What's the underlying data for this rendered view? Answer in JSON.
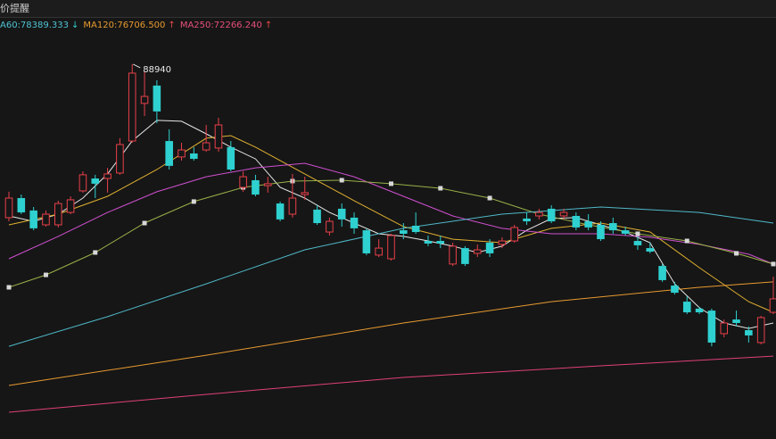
{
  "header": {
    "title": "价提醒"
  },
  "chart_data": {
    "type": "candlestick",
    "legend": [
      {
        "text": "A60:78389.333",
        "color": "#4fc3d4",
        "arrow": "↓",
        "arrow_color": "#2fd0c8"
      },
      {
        "text": "MA120:76706.500",
        "color": "#e89a30",
        "arrow": "↑",
        "arrow_color": "#e84848"
      },
      {
        "text": "MA250:72266.240",
        "color": "#e8507a",
        "arrow": "↑",
        "arrow_color": "#e84848"
      }
    ],
    "annotation": 88940,
    "ylim": [
      67520,
      90570
    ],
    "up_color": "#e8404a",
    "down_color": "#2fd0d0",
    "open": [
      80170,
      81290,
      80580,
      79760,
      79760,
      80470,
      81700,
      82410,
      82410,
      82720,
      84550,
      86700,
      87720,
      84550,
      83640,
      83840,
      84040,
      84150,
      84200,
      81900,
      82310,
      82000,
      80980,
      80370,
      81490,
      80630,
      79350,
      80680,
      80170,
      79450,
      78030,
      77820,
      79450,
      79710,
      78840,
      78840,
      77520,
      78430,
      78130,
      78740,
      78640,
      78840,
      80120,
      80270,
      80680,
      80270,
      80270,
      79960,
      79760,
      79860,
      79450,
      78840,
      78430,
      77410,
      76290,
      75370,
      74970,
      74860,
      73540,
      74350,
      73740,
      73030,
      74760
    ],
    "high": [
      81650,
      81490,
      80780,
      80580,
      81140,
      81390,
      82820,
      82620,
      83020,
      84710,
      88940,
      88530,
      88020,
      85220,
      84450,
      84200,
      85470,
      85880,
      84550,
      82820,
      82620,
      82510,
      81090,
      82670,
      82510,
      80880,
      80170,
      80980,
      80470,
      79560,
      78940,
      79250,
      79860,
      80470,
      79150,
      79150,
      78740,
      78540,
      78640,
      78940,
      79050,
      79760,
      80470,
      80680,
      80880,
      80680,
      80470,
      80370,
      79960,
      80170,
      79660,
      79100,
      78740,
      77520,
      76500,
      75680,
      75070,
      74970,
      74350,
      74860,
      73950,
      74560,
      76800
    ],
    "low": [
      79960,
      80370,
      79450,
      79660,
      79610,
      80370,
      81600,
      81290,
      81600,
      82620,
      84450,
      85980,
      85570,
      82920,
      83430,
      83430,
      83940,
      83940,
      82820,
      81650,
      81390,
      81600,
      79960,
      80170,
      81190,
      79760,
      79150,
      79660,
      79250,
      78030,
      77920,
      77720,
      78940,
      79250,
      78540,
      78430,
      77410,
      77410,
      77920,
      77920,
      78430,
      78740,
      79760,
      80070,
      79860,
      80070,
      79450,
      79450,
      78840,
      79250,
      79150,
      78330,
      78130,
      76500,
      75780,
      74660,
      74660,
      72820,
      73330,
      73950,
      73030,
      72930,
      74660
    ],
    "close": [
      81290,
      80470,
      79560,
      80370,
      80980,
      81190,
      82620,
      82110,
      82670,
      84350,
      88430,
      87100,
      86240,
      83130,
      84040,
      83530,
      84450,
      85470,
      82920,
      82510,
      81490,
      82110,
      80070,
      81290,
      81600,
      79860,
      79960,
      80070,
      79560,
      78130,
      78430,
      79150,
      79250,
      79350,
      78690,
      78690,
      78540,
      77520,
      78330,
      78130,
      78840,
      79610,
      79960,
      80470,
      79960,
      80470,
      79610,
      79610,
      78940,
      79450,
      79250,
      78590,
      78230,
      76600,
      75880,
      74760,
      74760,
      73030,
      74150,
      74150,
      73440,
      74460,
      75530
    ],
    "lines": [
      {
        "color": "#e6e6e6",
        "x": [
          0,
          2,
          4,
          6,
          8,
          10,
          12,
          14,
          16,
          18,
          20,
          22,
          24,
          26,
          28,
          30,
          32,
          34,
          36,
          38,
          40,
          42,
          44,
          46,
          48,
          50,
          52,
          54,
          56,
          58,
          60,
          62
        ],
        "values": [
          80270,
          79960,
          80370,
          81290,
          82670,
          84550,
          85730,
          85680,
          84960,
          84200,
          83530,
          81900,
          81290,
          80470,
          79860,
          79250,
          79100,
          78840,
          78540,
          78180,
          78540,
          79450,
          80120,
          80170,
          79760,
          79350,
          78740,
          76390,
          75020,
          74150,
          73840,
          74150
        ]
      },
      {
        "color": "#e0b030",
        "x": [
          0,
          4,
          8,
          12,
          16,
          18,
          20,
          24,
          28,
          32,
          36,
          40,
          44,
          48,
          52,
          56,
          60,
          62
        ],
        "values": [
          79760,
          80370,
          81390,
          82920,
          84710,
          84860,
          84200,
          82670,
          81140,
          79660,
          78940,
          78740,
          79560,
          79860,
          79350,
          77310,
          75370,
          74760
        ]
      },
      {
        "color": "#d050d0",
        "x": [
          0,
          4,
          8,
          12,
          16,
          20,
          24,
          28,
          32,
          36,
          40,
          44,
          48,
          52,
          56,
          60,
          62
        ],
        "values": [
          77820,
          79100,
          80470,
          81650,
          82510,
          83020,
          83280,
          82510,
          81390,
          80270,
          79560,
          79250,
          79250,
          79050,
          78640,
          78080,
          77520
        ]
      },
      {
        "color": "#98b048",
        "markers": true,
        "x": [
          0,
          3,
          7,
          11,
          15,
          19,
          23,
          27,
          31,
          35,
          39,
          43,
          47,
          51,
          55,
          59,
          62
        ],
        "values": [
          76190,
          76900,
          78180,
          79860,
          81090,
          81900,
          82260,
          82310,
          82110,
          81850,
          81290,
          80370,
          79760,
          79250,
          78840,
          78130,
          77520
        ]
      },
      {
        "color": "#4fb8c8",
        "x": [
          0,
          8,
          16,
          24,
          32,
          40,
          48,
          56,
          62
        ],
        "values": [
          72820,
          74510,
          76390,
          78330,
          79560,
          80370,
          80780,
          80470,
          79860
        ]
      },
      {
        "color": "#e89a30",
        "x": [
          0,
          16,
          32,
          44,
          56,
          62
        ],
        "values": [
          70580,
          72310,
          74150,
          75370,
          76190,
          76500
        ]
      },
      {
        "color": "#e0407a",
        "x": [
          0,
          16,
          32,
          48,
          62
        ],
        "values": [
          69050,
          70070,
          71040,
          71700,
          72260
        ]
      }
    ]
  }
}
